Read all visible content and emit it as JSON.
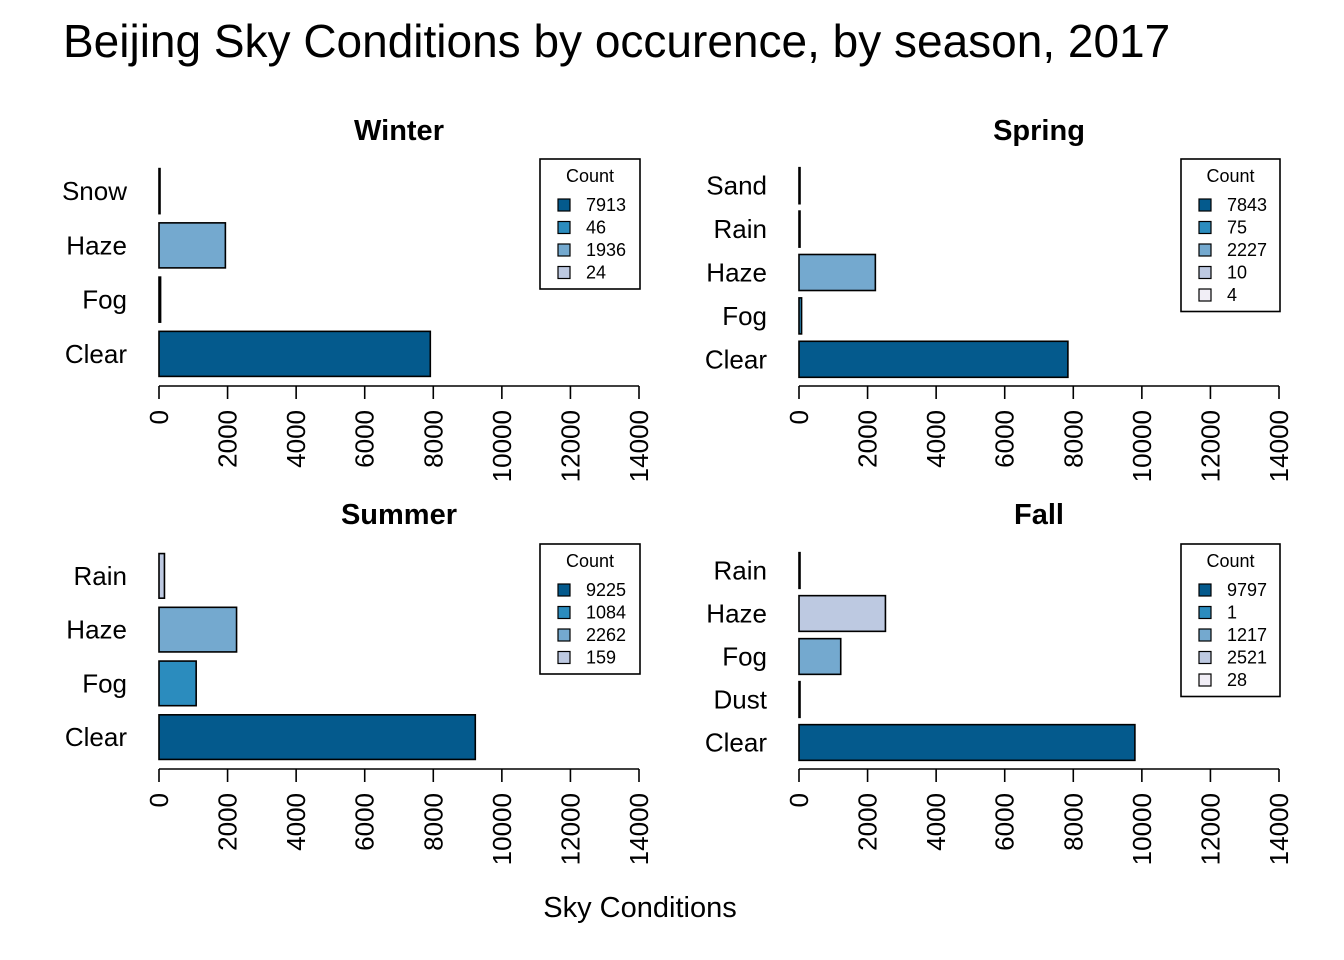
{
  "title": "Beijing Sky Conditions by occurence, by season, 2017",
  "xlabel": "Sky Conditions",
  "colors": {
    "dark": "#045a8d",
    "mid": "#2b8cbe",
    "light": "#74a9cf",
    "pale": "#bdc9e1",
    "white": "#f1eef6"
  },
  "chart_data": [
    {
      "type": "bar",
      "title": "Winter",
      "categories": [
        "Clear",
        "Fog",
        "Haze",
        "Snow"
      ],
      "values": [
        7913,
        46,
        1936,
        24
      ],
      "bar_colors": [
        "dark",
        "mid",
        "light",
        "pale"
      ],
      "xlim": [
        0,
        14000
      ],
      "xticks": [
        "0",
        "2000",
        "4000",
        "6000",
        "8000",
        "10000",
        "12000",
        "14000"
      ],
      "legend": {
        "title": "Count",
        "entries": [
          "7913",
          "46",
          "1936",
          "24"
        ],
        "position": "top-right"
      }
    },
    {
      "type": "bar",
      "title": "Spring",
      "categories": [
        "Clear",
        "Fog",
        "Haze",
        "Rain",
        "Sand"
      ],
      "values": [
        7843,
        75,
        2227,
        10,
        4
      ],
      "bar_colors": [
        "dark",
        "mid",
        "light",
        "pale",
        "white"
      ],
      "xlim": [
        0,
        14000
      ],
      "xticks": [
        "0",
        "2000",
        "4000",
        "6000",
        "8000",
        "10000",
        "12000",
        "14000"
      ],
      "legend": {
        "title": "Count",
        "entries": [
          "7843",
          "75",
          "2227",
          "10",
          "4"
        ],
        "position": "top-right"
      }
    },
    {
      "type": "bar",
      "title": "Summer",
      "categories": [
        "Clear",
        "Fog",
        "Haze",
        "Rain"
      ],
      "values": [
        9225,
        1084,
        2262,
        159
      ],
      "bar_colors": [
        "dark",
        "mid",
        "light",
        "pale"
      ],
      "xlim": [
        0,
        14000
      ],
      "xticks": [
        "0",
        "2000",
        "4000",
        "6000",
        "8000",
        "10000",
        "12000",
        "14000"
      ],
      "legend": {
        "title": "Count",
        "entries": [
          "9225",
          "1084",
          "2262",
          "159"
        ],
        "position": "top-right"
      }
    },
    {
      "type": "bar",
      "title": "Fall",
      "categories": [
        "Clear",
        "Dust",
        "Fog",
        "Haze",
        "Rain"
      ],
      "values": [
        9797,
        1,
        1217,
        2521,
        28
      ],
      "bar_colors": [
        "dark",
        "mid",
        "light",
        "pale",
        "white"
      ],
      "xlim": [
        0,
        14000
      ],
      "xticks": [
        "0",
        "2000",
        "4000",
        "6000",
        "8000",
        "10000",
        "12000",
        "14000"
      ],
      "legend": {
        "title": "Count",
        "entries": [
          "9797",
          "1",
          "1217",
          "2521",
          "28"
        ],
        "position": "top-right"
      }
    }
  ]
}
